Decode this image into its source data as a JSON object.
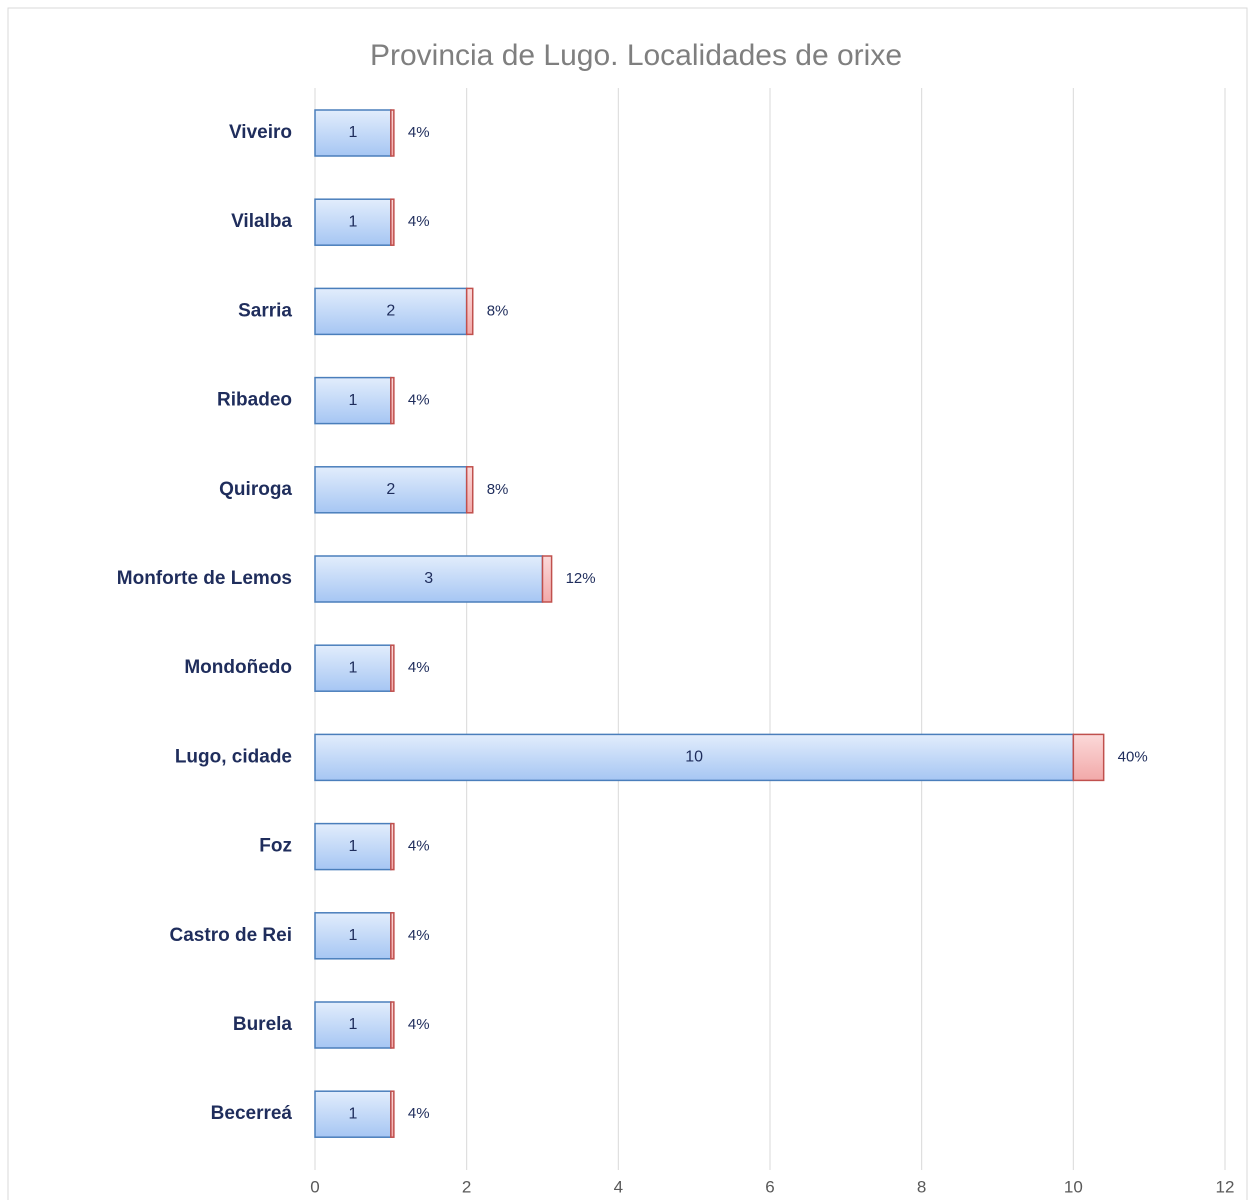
{
  "chart_data": {
    "type": "stacked_barh",
    "title": "Provincia de Lugo. Localidades de orixe",
    "categories": [
      "Viveiro",
      "Vilalba",
      "Sarria",
      "Ribadeo",
      "Quiroga",
      "Monforte de Lemos",
      "Mondoñedo",
      "Lugo, cidade",
      "Foz",
      "Castro de Rei",
      "Burela",
      "Becerreá"
    ],
    "series": [
      {
        "color": "#b9d3f7",
        "values": [
          1,
          1,
          2,
          1,
          2,
          3,
          1,
          10,
          1,
          1,
          1,
          1
        ]
      },
      {
        "color": "#f7c3c3",
        "values": [
          0.04,
          0.04,
          0.08,
          0.04,
          0.08,
          0.12,
          0.04,
          0.4,
          0.04,
          0.04,
          0.04,
          0.04
        ],
        "value_labels": [
          "4%",
          "4%",
          "8%",
          "4%",
          "8%",
          "12%",
          "4%",
          "40%",
          "4%",
          "4%",
          "4%",
          "4%"
        ]
      }
    ],
    "xlim": [
      0,
      12
    ],
    "xticks": [
      0,
      2,
      4,
      6,
      8,
      10,
      12
    ],
    "grid": true
  }
}
